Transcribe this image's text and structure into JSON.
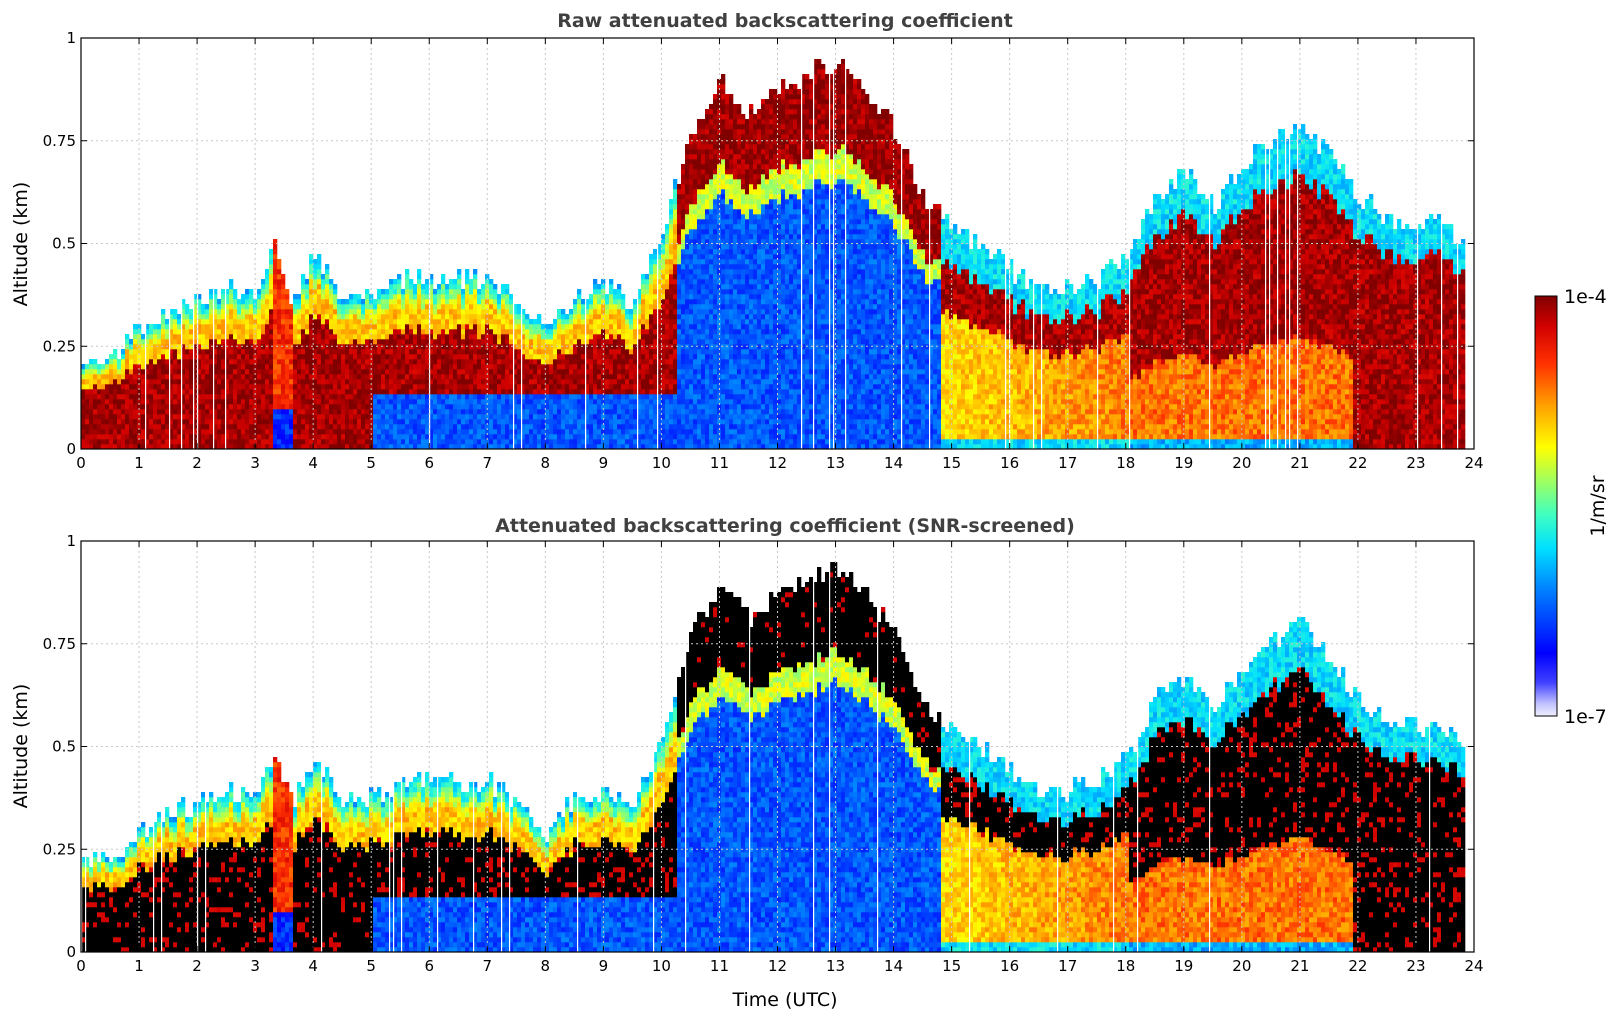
{
  "chart_data": [
    {
      "type": "heatmap",
      "title": "Raw attenuated backscattering coefficient",
      "xlabel": "",
      "ylabel": "Altitude (km)",
      "xlim": [
        0,
        24
      ],
      "ylim": [
        0,
        1
      ],
      "xticks": [
        "0",
        "1",
        "2",
        "3",
        "4",
        "5",
        "6",
        "7",
        "8",
        "9",
        "10",
        "11",
        "12",
        "13",
        "14",
        "15",
        "16",
        "17",
        "18",
        "19",
        "20",
        "21",
        "22",
        "23",
        "24"
      ],
      "yticks": [
        "0",
        "0.25",
        "0.5",
        "0.75",
        "1"
      ],
      "grid": true,
      "screened": false,
      "profile": {
        "time_utc": [
          0,
          0.5,
          1,
          1.5,
          2,
          2.5,
          3,
          3.3,
          3.6,
          4,
          4.5,
          5,
          5.5,
          6,
          6.5,
          7,
          7.5,
          8,
          8.5,
          9,
          9.5,
          10,
          10.5,
          11,
          11.5,
          12,
          12.5,
          13,
          13.5,
          14,
          14.5,
          15,
          15.5,
          16,
          16.5,
          17,
          17.5,
          18,
          18.5,
          19,
          19.5,
          20,
          20.5,
          21,
          21.5,
          22,
          22.5,
          23,
          23.5,
          23.8
        ],
        "top_km": [
          0.22,
          0.23,
          0.3,
          0.35,
          0.36,
          0.4,
          0.38,
          0.5,
          0.36,
          0.48,
          0.38,
          0.38,
          0.42,
          0.42,
          0.42,
          0.42,
          0.36,
          0.3,
          0.38,
          0.4,
          0.36,
          0.55,
          0.78,
          0.9,
          0.82,
          0.88,
          0.92,
          0.95,
          0.88,
          0.78,
          0.6,
          0.55,
          0.5,
          0.44,
          0.4,
          0.4,
          0.42,
          0.48,
          0.62,
          0.68,
          0.6,
          0.7,
          0.76,
          0.8,
          0.72,
          0.62,
          0.56,
          0.56,
          0.55,
          0.5
        ]
      }
    },
    {
      "type": "heatmap",
      "title": "Attenuated backscattering coefficient (SNR-screened)",
      "xlabel": "Time (UTC)",
      "ylabel": "Altitude (km)",
      "xlim": [
        0,
        24
      ],
      "ylim": [
        0,
        1
      ],
      "xticks": [
        "0",
        "1",
        "2",
        "3",
        "4",
        "5",
        "6",
        "7",
        "8",
        "9",
        "10",
        "11",
        "12",
        "13",
        "14",
        "15",
        "16",
        "17",
        "18",
        "19",
        "20",
        "21",
        "22",
        "23",
        "24"
      ],
      "yticks": [
        "0",
        "0.25",
        "0.5",
        "0.75",
        "1"
      ],
      "grid": true,
      "screened": true,
      "profile": {
        "time_utc": [
          0,
          0.5,
          1,
          1.5,
          2,
          2.5,
          3,
          3.3,
          3.6,
          4,
          4.5,
          5,
          5.5,
          6,
          6.5,
          7,
          7.5,
          8,
          8.5,
          9,
          9.5,
          10,
          10.5,
          11,
          11.5,
          12,
          12.5,
          13,
          13.5,
          14,
          14.5,
          15,
          15.5,
          16,
          16.5,
          17,
          17.5,
          18,
          18.5,
          19,
          19.5,
          20,
          20.5,
          21,
          21.5,
          22,
          22.5,
          23,
          23.5,
          23.8
        ],
        "top_km": [
          0.22,
          0.23,
          0.3,
          0.35,
          0.36,
          0.4,
          0.38,
          0.5,
          0.36,
          0.48,
          0.38,
          0.38,
          0.42,
          0.42,
          0.42,
          0.42,
          0.36,
          0.3,
          0.38,
          0.4,
          0.36,
          0.55,
          0.78,
          0.9,
          0.82,
          0.88,
          0.92,
          0.95,
          0.88,
          0.78,
          0.6,
          0.55,
          0.5,
          0.44,
          0.4,
          0.4,
          0.42,
          0.48,
          0.62,
          0.68,
          0.6,
          0.7,
          0.76,
          0.8,
          0.72,
          0.62,
          0.56,
          0.56,
          0.55,
          0.5
        ]
      }
    }
  ],
  "colorbar": {
    "max_label": "1e-4",
    "min_label": "1e-7",
    "unit_label": "1/m/sr",
    "scale": "log",
    "range": [
      1e-07,
      0.0001
    ]
  },
  "colors": {
    "saturated": "#000000",
    "grid": "#c8c8c8",
    "title": "#404040"
  }
}
